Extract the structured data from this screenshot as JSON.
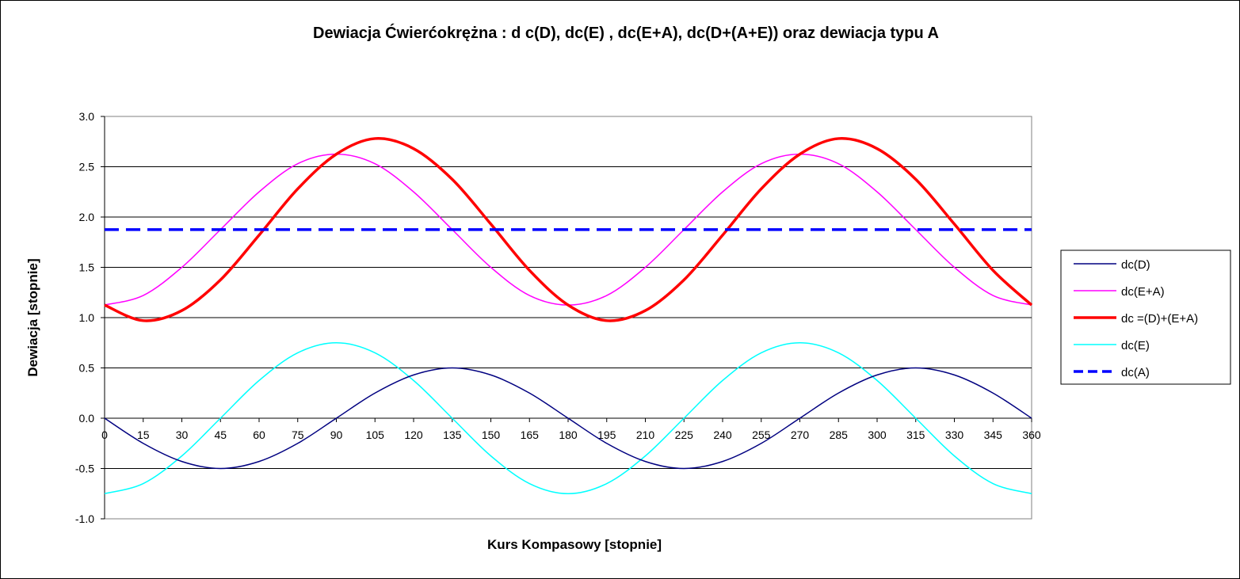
{
  "chart_data": {
    "type": "line",
    "title": "Dewiacja Ćwierćokrężna : d c(D), dc(E) , dc(E+A), dc(D+(A+E)) oraz dewiacja typu A",
    "xlabel": "Kurs Kompasowy  [stopnie]",
    "ylabel": "Dewiacja [stopnie]",
    "xlim": [
      0,
      360
    ],
    "ylim": [
      -1.0,
      3.0
    ],
    "x_ticks": [
      "0",
      "15",
      "30",
      "45",
      "60",
      "75",
      "90",
      "105",
      "120",
      "135",
      "150",
      "165",
      "180",
      "195",
      "210",
      "225",
      "240",
      "255",
      "270",
      "285",
      "300",
      "315",
      "330",
      "345",
      "360"
    ],
    "y_ticks": [
      "-1.0",
      "-0.5",
      "0.0",
      "0.5",
      "1.0",
      "1.5",
      "2.0",
      "2.5",
      "3.0"
    ],
    "grid": "horizontal",
    "legend_position": "right",
    "x": [
      0,
      15,
      30,
      45,
      60,
      75,
      90,
      105,
      120,
      135,
      150,
      165,
      180,
      195,
      210,
      225,
      240,
      255,
      270,
      285,
      300,
      315,
      330,
      345,
      360
    ],
    "series": [
      {
        "name": "dc(D)",
        "color": "#000080",
        "style": "solid",
        "values": [
          0.0,
          -0.25,
          -0.43,
          -0.5,
          -0.43,
          -0.25,
          0.0,
          0.25,
          0.43,
          0.5,
          0.43,
          0.25,
          0.0,
          -0.25,
          -0.43,
          -0.5,
          -0.43,
          -0.25,
          0.0,
          0.25,
          0.43,
          0.5,
          0.43,
          0.25,
          0.0
        ]
      },
      {
        "name": "dc(E+A)",
        "color": "#ff00ff",
        "style": "solid",
        "values": [
          1.125,
          1.22,
          1.5,
          1.875,
          2.25,
          2.53,
          2.625,
          2.53,
          2.25,
          1.875,
          1.5,
          1.22,
          1.125,
          1.22,
          1.5,
          1.875,
          2.25,
          2.53,
          2.625,
          2.53,
          2.25,
          1.875,
          1.5,
          1.22,
          1.125
        ]
      },
      {
        "name": "dc =(D)+(E+A)",
        "color": "#ff0000",
        "style": "thick",
        "values": [
          1.125,
          0.97,
          1.07,
          1.375,
          1.82,
          2.28,
          2.625,
          2.78,
          2.68,
          2.375,
          1.93,
          1.47,
          1.125,
          0.97,
          1.07,
          1.375,
          1.82,
          2.28,
          2.625,
          2.78,
          2.68,
          2.375,
          1.93,
          1.47,
          1.125
        ]
      },
      {
        "name": "dc(E)",
        "color": "#00ffff",
        "style": "solid",
        "values": [
          -0.75,
          -0.65,
          -0.375,
          0.0,
          0.375,
          0.65,
          0.75,
          0.65,
          0.375,
          0.0,
          -0.375,
          -0.65,
          -0.75,
          -0.65,
          -0.375,
          0.0,
          0.375,
          0.65,
          0.75,
          0.65,
          0.375,
          0.0,
          -0.375,
          -0.65,
          -0.75
        ]
      },
      {
        "name": "dc(A)",
        "color": "#0000ff",
        "style": "dashed",
        "values": [
          1.875,
          1.875,
          1.875,
          1.875,
          1.875,
          1.875,
          1.875,
          1.875,
          1.875,
          1.875,
          1.875,
          1.875,
          1.875,
          1.875,
          1.875,
          1.875,
          1.875,
          1.875,
          1.875,
          1.875,
          1.875,
          1.875,
          1.875,
          1.875,
          1.875
        ]
      }
    ],
    "legend_order": [
      0,
      1,
      2,
      3,
      4
    ]
  }
}
